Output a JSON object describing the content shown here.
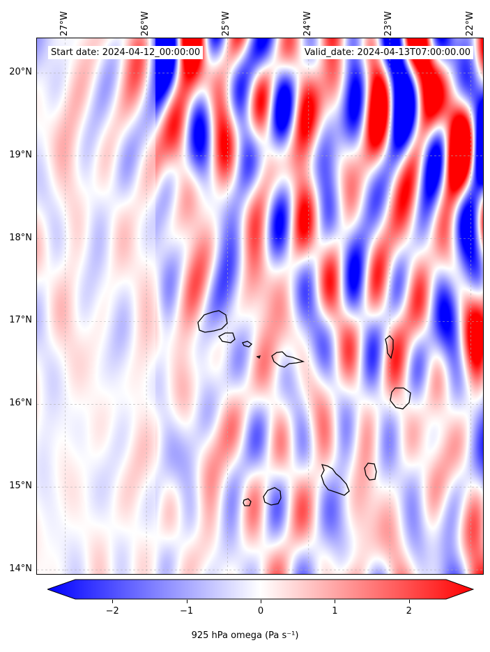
{
  "header": {
    "start_date": "Start date: 2024-04-12_00:00:00",
    "valid_date": "Valid_date: 2024-04-13T07:00:00.00"
  },
  "axes": {
    "lat_labels": [
      "20°N",
      "19°N",
      "18°N",
      "17°N",
      "16°N",
      "15°N",
      "14°N"
    ],
    "lat_values": [
      20,
      19,
      18,
      17,
      16,
      15,
      14
    ],
    "lon_labels": [
      "27°W",
      "26°W",
      "25°W",
      "24°W",
      "23°W",
      "22°W"
    ],
    "lon_values": [
      -27,
      -26,
      -25,
      -24,
      -23,
      -22
    ],
    "lat_range": [
      13.95,
      20.42
    ],
    "lon_range": [
      -27.35,
      -21.85
    ]
  },
  "colorbar": {
    "label": "925 hPa omega (Pa s⁻¹)",
    "ticks": [
      "−2",
      "−1",
      "0",
      "1",
      "2"
    ],
    "tick_values": [
      -2,
      -1,
      0,
      1,
      2
    ],
    "range": [
      -2.5,
      2.5
    ],
    "colormap": "bwr",
    "color_low": "#0000ff",
    "color_mid": "#ffffff",
    "color_high": "#ff0000",
    "extend": "both"
  },
  "map": {
    "variable": "925 hPa omega",
    "projection": "PlateCarree",
    "gridlines": true,
    "coastline_color": "#000000",
    "islands": [
      "Santo Antão",
      "São Vicente",
      "Santa Luzia",
      "São Nicolau",
      "Sal",
      "Boa Vista",
      "Fogo",
      "Brava",
      "Santiago",
      "Maio"
    ]
  }
}
